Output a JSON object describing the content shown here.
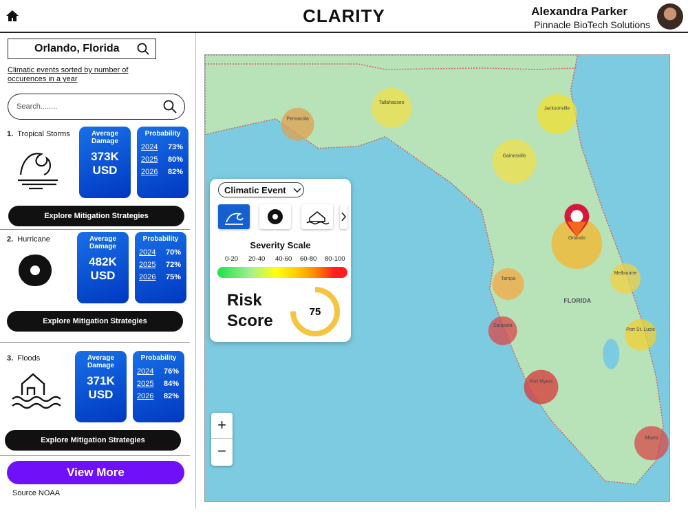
{
  "header": {
    "title": "CLARITY",
    "user_name": "Alexandra Parker",
    "company": "Pinnacle BioTech Solutions"
  },
  "sidebar": {
    "location": "Orlando, Florida",
    "sort_note": "Climatic events sorted by number of occurences in a year",
    "search_placeholder": "Search........",
    "events": [
      {
        "rank": "1.",
        "name": "Tropical Storms",
        "icon": "storm",
        "damage_label": "Average Damage",
        "damage_value": "373K",
        "damage_unit": "USD",
        "probability_label": "Probability",
        "probabilities": [
          {
            "year": "2024",
            "value": "73%"
          },
          {
            "year": "2025",
            "value": "80%"
          },
          {
            "year": "2026",
            "value": "82%"
          }
        ],
        "button": "Explore Mitigation Strategies"
      },
      {
        "rank": "2.",
        "name": "Hurricane",
        "icon": "hurricane",
        "damage_label": "Average Damage",
        "damage_value": "482K",
        "damage_unit": "USD",
        "probability_label": "Probability",
        "probabilities": [
          {
            "year": "2024",
            "value": "70%"
          },
          {
            "year": "2025",
            "value": "72%"
          },
          {
            "year": "2026",
            "value": "75%"
          }
        ],
        "button": "Explore Mitigation Strategies"
      },
      {
        "rank": "3.",
        "name": "Floods",
        "icon": "flood",
        "damage_label": "Average Damage",
        "damage_value": "371K",
        "damage_unit": "USD",
        "probability_label": "Probability",
        "probabilities": [
          {
            "year": "2024",
            "value": "76%"
          },
          {
            "year": "2025",
            "value": "84%"
          },
          {
            "year": "2026",
            "value": "82%"
          }
        ],
        "button": "Explore Mitigation Strategies"
      }
    ],
    "view_more": "View More",
    "source": "Source NOAA"
  },
  "map": {
    "region_label": "FLORIDA",
    "hotspots": [
      {
        "label": "Pensacola",
        "color": "#e0a050"
      },
      {
        "label": "Tallahassee",
        "color": "#f2e04a"
      },
      {
        "label": "Jacksonville",
        "color": "#f2e030"
      },
      {
        "label": "Gainesville",
        "color": "#f2e04a"
      },
      {
        "label": "Orlando",
        "color": "#f5b52a"
      },
      {
        "label": "Tampa",
        "color": "#f5a840"
      },
      {
        "label": "Melbourne",
        "color": "#f2d040"
      },
      {
        "label": "Sarasota",
        "color": "#d84848"
      },
      {
        "label": "Port St. Lucie",
        "color": "#f2d030"
      },
      {
        "label": "Fort Myers",
        "color": "#d83838"
      },
      {
        "label": "Miami",
        "color": "#d84848"
      }
    ],
    "zoom_in": "+",
    "zoom_out": "−"
  },
  "overlay": {
    "dropdown": "Climatic Event",
    "severity_title": "Severity Scale",
    "severity_ranges": [
      "0-20",
      "20-40",
      "40-60",
      "60-80",
      "80-100"
    ],
    "risk_label": "Risk Score",
    "risk_score": "75"
  }
}
